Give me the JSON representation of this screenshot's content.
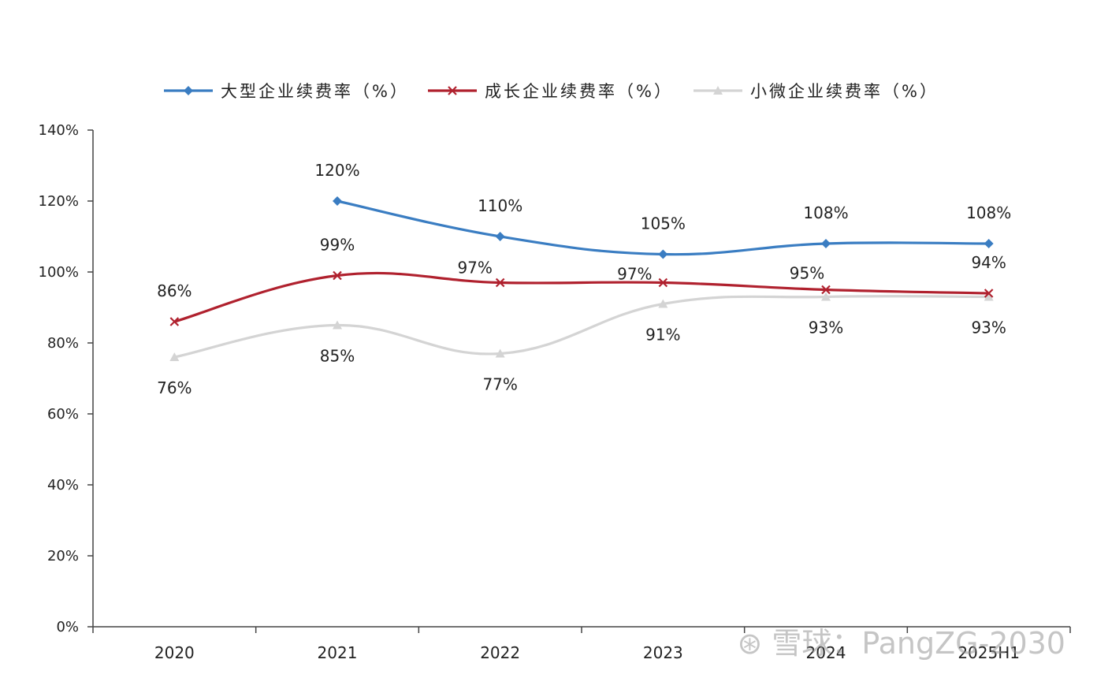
{
  "chart_data": {
    "type": "line",
    "title": "",
    "xlabel": "",
    "ylabel": "",
    "categories": [
      "2020",
      "2021",
      "2022",
      "2023",
      "2024",
      "2025H1"
    ],
    "ylim": [
      0,
      140
    ],
    "yticks": [
      0,
      20,
      40,
      60,
      80,
      100,
      120,
      140
    ],
    "ytick_labels": [
      "0%",
      "20%",
      "40%",
      "60%",
      "80%",
      "100%",
      "120%",
      "140%"
    ],
    "legend_position": "top",
    "series": [
      {
        "name": "大型企业续费率（%）",
        "color": "#3a7dc2",
        "marker": "diamond",
        "values": [
          null,
          120,
          110,
          105,
          108,
          108
        ],
        "labels": [
          "",
          "120%",
          "110%",
          "105%",
          "108%",
          "108%"
        ]
      },
      {
        "name": "成长企业续费率（%）",
        "color": "#b0212e",
        "marker": "x",
        "values": [
          86,
          99,
          97,
          97,
          95,
          94
        ],
        "labels": [
          "86%",
          "99%",
          "97%",
          "97%",
          "95%",
          "94%"
        ]
      },
      {
        "name": "小微企业续费率（%）",
        "color": "#d4d4d4",
        "marker": "triangle",
        "values": [
          76,
          85,
          77,
          91,
          93,
          93
        ],
        "labels": [
          "76%",
          "85%",
          "77%",
          "91%",
          "93%",
          "93%"
        ]
      }
    ]
  },
  "watermark": "雪球：PangZG-2030"
}
